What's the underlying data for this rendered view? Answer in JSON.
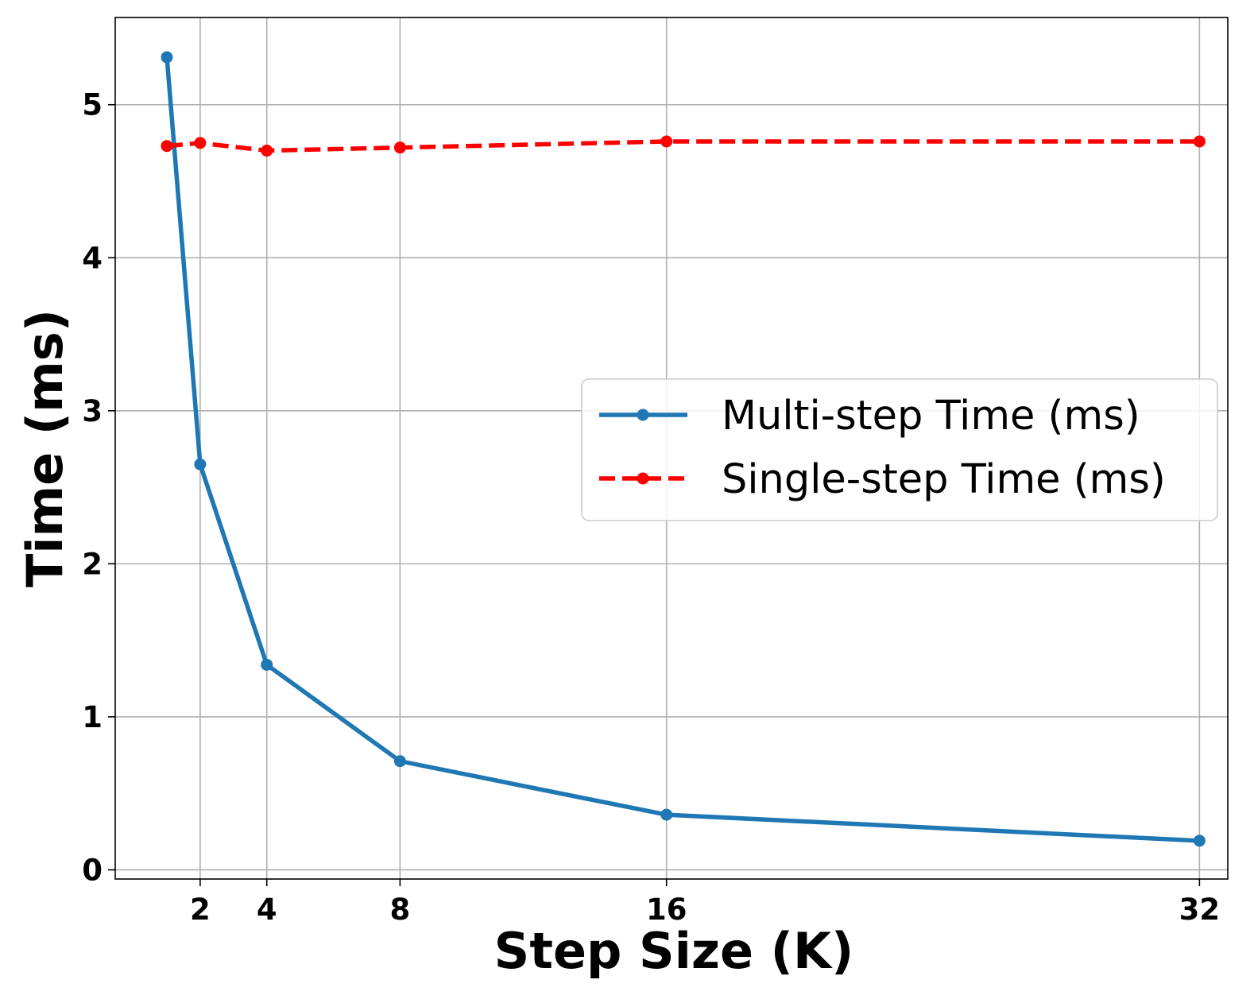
{
  "chart_data": {
    "type": "line",
    "xlabel": "Step Size (K)",
    "ylabel": "Time (ms)",
    "x": [
      1,
      2,
      4,
      8,
      16,
      32
    ],
    "xticks": [
      2,
      4,
      8,
      16,
      32
    ],
    "xtick_labels": [
      "2",
      "4",
      "8",
      "16",
      "32"
    ],
    "yticks": [
      0,
      1,
      2,
      3,
      4,
      5
    ],
    "ytick_labels": [
      "0",
      "1",
      "2",
      "3",
      "4",
      "5"
    ],
    "xlim": [
      -0.55,
      32.85
    ],
    "ylim": [
      -0.06,
      5.57
    ],
    "grid": true,
    "legend_position": "center-right",
    "series": [
      {
        "name": "Multi-step Time (ms)",
        "values": [
          5.31,
          2.65,
          1.34,
          0.71,
          0.36,
          0.19
        ],
        "color": "#1f77b4",
        "style": "solid",
        "marker": "circle"
      },
      {
        "name": "Single-step Time (ms)",
        "values": [
          4.73,
          4.75,
          4.7,
          4.72,
          4.76,
          4.76
        ],
        "color": "#ff0000",
        "style": "dashed",
        "marker": "circle"
      }
    ]
  }
}
